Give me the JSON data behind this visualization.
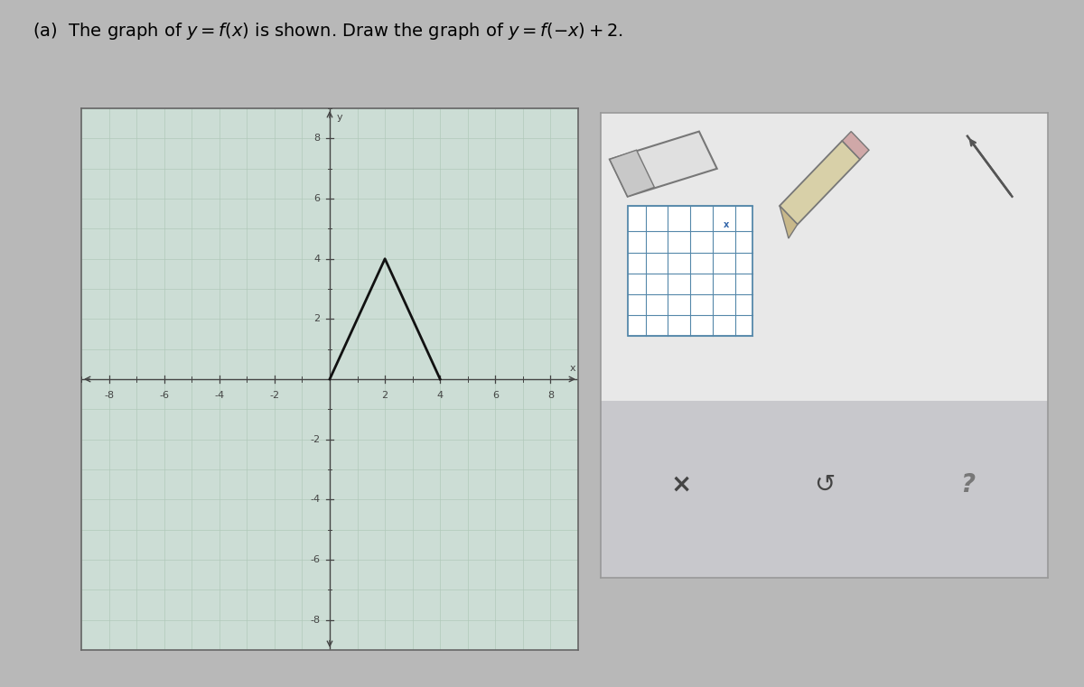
{
  "title": "(a)  The graph of $y = f(x)$ is shown. Draw the graph of $y = f(-x)+2$.",
  "title_fontsize": 14,
  "graph_xlim": [
    -9,
    9
  ],
  "graph_ylim": [
    -9,
    9
  ],
  "xticks": [
    -8,
    -6,
    -4,
    -2,
    2,
    4,
    6,
    8
  ],
  "yticks": [
    -8,
    -6,
    -4,
    -2,
    2,
    4,
    6,
    8
  ],
  "grid_color": "#aec8b8",
  "bg_color": "#ccddd5",
  "fx_points_x": [
    0,
    2,
    4
  ],
  "fx_points_y": [
    0,
    4,
    0
  ],
  "line_color": "#111111",
  "line_width": 2.0,
  "axis_color": "#444444",
  "tick_label_color": "#444444",
  "tick_fontsize": 8,
  "figure_bg": "#b8b8b8",
  "outer_bg": "#c0c0c0",
  "panel_box_color": "#e8e8e8",
  "panel_border_color": "#999999",
  "toolbar_lower_bg": "#c8c8cc"
}
